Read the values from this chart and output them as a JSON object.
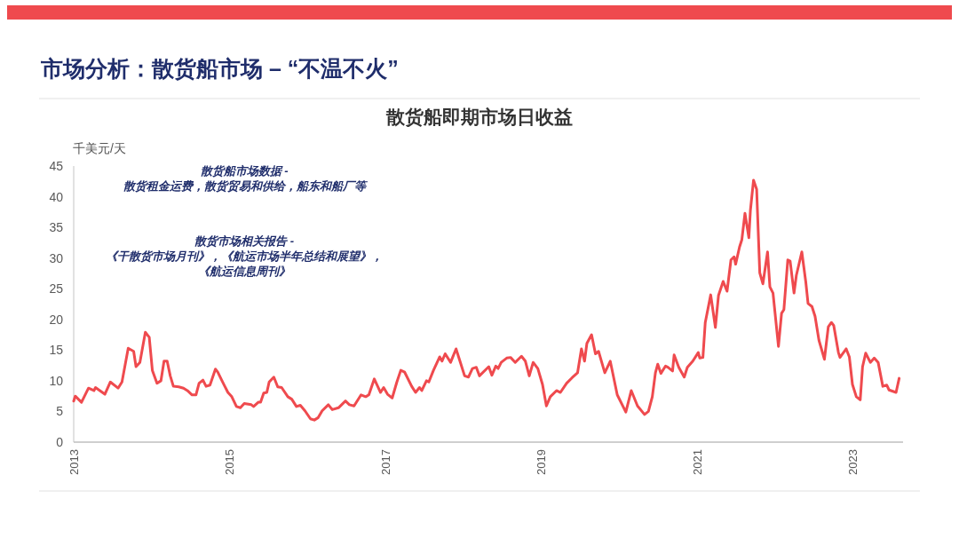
{
  "chart_data": {
    "type": "line",
    "title": "散货船即期市场日收益",
    "subtitle": "市场分析：散货船市场 – “不温不火”",
    "ylabel": "千美元/天",
    "annotations": [
      "散货船市场数据 -",
      "散货租金运费，散货贸易和供给，船东和船厂等",
      "散货市场相关报告 -",
      "《干散货市场月刊》，《航运市场半年总结和展望》，",
      "《航运信息周刊》"
    ],
    "x": [
      2013.0,
      2013.02,
      2013.1,
      2013.19,
      2013.26,
      2013.28,
      2013.4,
      2013.47,
      2013.57,
      2013.62,
      2013.7,
      2013.77,
      2013.8,
      2013.85,
      2013.92,
      2013.97,
      2014.01,
      2014.07,
      2014.12,
      2014.16,
      2014.2,
      2014.24,
      2014.28,
      2014.35,
      2014.41,
      2014.46,
      2014.52,
      2014.57,
      2014.61,
      2014.66,
      2014.7,
      2014.75,
      2014.82,
      2014.85,
      2014.9,
      2014.98,
      2015.03,
      2015.09,
      2015.14,
      2015.19,
      2015.28,
      2015.31,
      2015.37,
      2015.4,
      2015.44,
      2015.48,
      2015.51,
      2015.57,
      2015.62,
      2015.67,
      2015.75,
      2015.8,
      2015.86,
      2015.91,
      2015.97,
      2016.04,
      2016.09,
      2016.14,
      2016.19,
      2016.27,
      2016.32,
      2016.4,
      2016.49,
      2016.54,
      2016.6,
      2016.69,
      2016.75,
      2016.79,
      2016.86,
      2016.94,
      2016.98,
      2017.03,
      2017.09,
      2017.15,
      2017.2,
      2017.25,
      2017.34,
      2017.39,
      2017.44,
      2017.47,
      2017.53,
      2017.56,
      2017.62,
      2017.7,
      2017.73,
      2017.77,
      2017.84,
      2017.91,
      2017.96,
      2018.02,
      2018.07,
      2018.12,
      2018.17,
      2018.21,
      2018.33,
      2018.37,
      2018.42,
      2018.45,
      2018.49,
      2018.56,
      2018.61,
      2018.67,
      2018.75,
      2018.8,
      2018.85,
      2018.9,
      2018.96,
      2019.02,
      2019.07,
      2019.12,
      2019.2,
      2019.25,
      2019.33,
      2019.4,
      2019.47,
      2019.52,
      2019.56,
      2019.59,
      2019.65,
      2019.7,
      2019.74,
      2019.82,
      2019.89,
      2019.98,
      2020.09,
      2020.16,
      2020.24,
      2020.33,
      2020.38,
      2020.43,
      2020.47,
      2020.5,
      2020.54,
      2020.6,
      2020.63,
      2020.69,
      2020.71,
      2020.77,
      2020.84,
      2020.88,
      2020.95,
      2021.02,
      2021.04,
      2021.08,
      2021.11,
      2021.18,
      2021.24,
      2021.28,
      2021.34,
      2021.39,
      2021.44,
      2021.48,
      2021.5,
      2021.55,
      2021.58,
      2021.62,
      2021.67,
      2021.69,
      2021.73,
      2021.77,
      2021.81,
      2021.85,
      2021.91,
      2021.94,
      2021.98,
      2022.05,
      2022.09,
      2022.12,
      2022.17,
      2022.2,
      2022.25,
      2022.28,
      2022.35,
      2022.4,
      2022.43,
      2022.48,
      2022.52,
      2022.57,
      2022.64,
      2022.69,
      2022.73,
      2022.76,
      2022.82,
      2022.84,
      2022.92,
      2022.96,
      2023.0,
      2023.05,
      2023.1,
      2023.13,
      2023.17,
      2023.23,
      2023.28,
      2023.33,
      2023.39,
      2023.44,
      2023.47,
      2023.56,
      2023.6
    ],
    "series": [
      {
        "color": "#ef4a4e",
        "values": [
          6.7,
          7.5,
          6.5,
          8.8,
          8.4,
          8.9,
          7.8,
          9.8,
          8.8,
          9.8,
          15.3,
          14.8,
          12.3,
          13.0,
          17.9,
          17.1,
          11.7,
          9.6,
          10.0,
          13.2,
          13.2,
          10.8,
          9.1,
          9.0,
          8.8,
          8.4,
          7.7,
          7.7,
          9.6,
          10.1,
          9.1,
          9.3,
          11.9,
          11.4,
          10.1,
          8.1,
          7.4,
          5.8,
          5.6,
          6.3,
          6.1,
          5.8,
          6.5,
          6.5,
          8.0,
          8.1,
          9.8,
          10.6,
          9.0,
          8.9,
          7.4,
          7.0,
          5.8,
          6.0,
          5.1,
          3.8,
          3.6,
          4.0,
          5.1,
          6.1,
          5.3,
          5.6,
          6.7,
          6.1,
          5.9,
          7.7,
          7.4,
          7.7,
          10.3,
          8.1,
          8.9,
          7.8,
          7.2,
          9.8,
          11.7,
          11.4,
          9.1,
          8.1,
          8.9,
          8.4,
          10.0,
          9.8,
          11.7,
          13.9,
          13.2,
          14.4,
          13.0,
          15.2,
          13.2,
          10.8,
          10.6,
          12.0,
          12.2,
          10.8,
          12.3,
          10.9,
          12.4,
          12.0,
          13.0,
          13.7,
          13.8,
          13.0,
          14.0,
          13.2,
          10.8,
          13.0,
          12.0,
          9.4,
          5.9,
          7.4,
          8.4,
          8.1,
          9.6,
          10.5,
          11.3,
          15.2,
          13.2,
          16.1,
          17.5,
          14.4,
          14.8,
          11.3,
          13.2,
          7.7,
          4.9,
          8.4,
          5.9,
          4.5,
          5.0,
          7.4,
          11.3,
          12.7,
          11.2,
          12.4,
          12.2,
          11.6,
          14.2,
          12.2,
          10.6,
          12.2,
          13.2,
          14.6,
          13.7,
          13.8,
          19.5,
          24.0,
          18.7,
          23.9,
          26.2,
          24.6,
          29.7,
          30.2,
          29.0,
          31.8,
          33.0,
          37.3,
          33.3,
          37.8,
          42.7,
          41.2,
          27.6,
          25.8,
          31.0,
          25.3,
          24.3,
          15.6,
          21.0,
          21.6,
          29.7,
          29.5,
          24.3,
          27.2,
          31.0,
          26.2,
          22.6,
          22.1,
          20.5,
          16.6,
          13.5,
          18.8,
          19.5,
          19.0,
          14.6,
          13.8,
          15.2,
          13.9,
          9.4,
          7.4,
          6.9,
          12.3,
          14.5,
          13.0,
          13.7,
          13.0,
          9.1,
          9.3,
          8.5,
          8.1,
          10.4
        ]
      }
    ],
    "xlim": [
      2013,
      2023.65
    ],
    "xticks": [
      2013,
      2015,
      2017,
      2019,
      2021,
      2023
    ],
    "ylim": [
      0,
      45
    ],
    "yticks": [
      0,
      5,
      10,
      15,
      20,
      25,
      30,
      35,
      40,
      45
    ],
    "line_style": "solid",
    "marker": "none",
    "grid": false
  }
}
